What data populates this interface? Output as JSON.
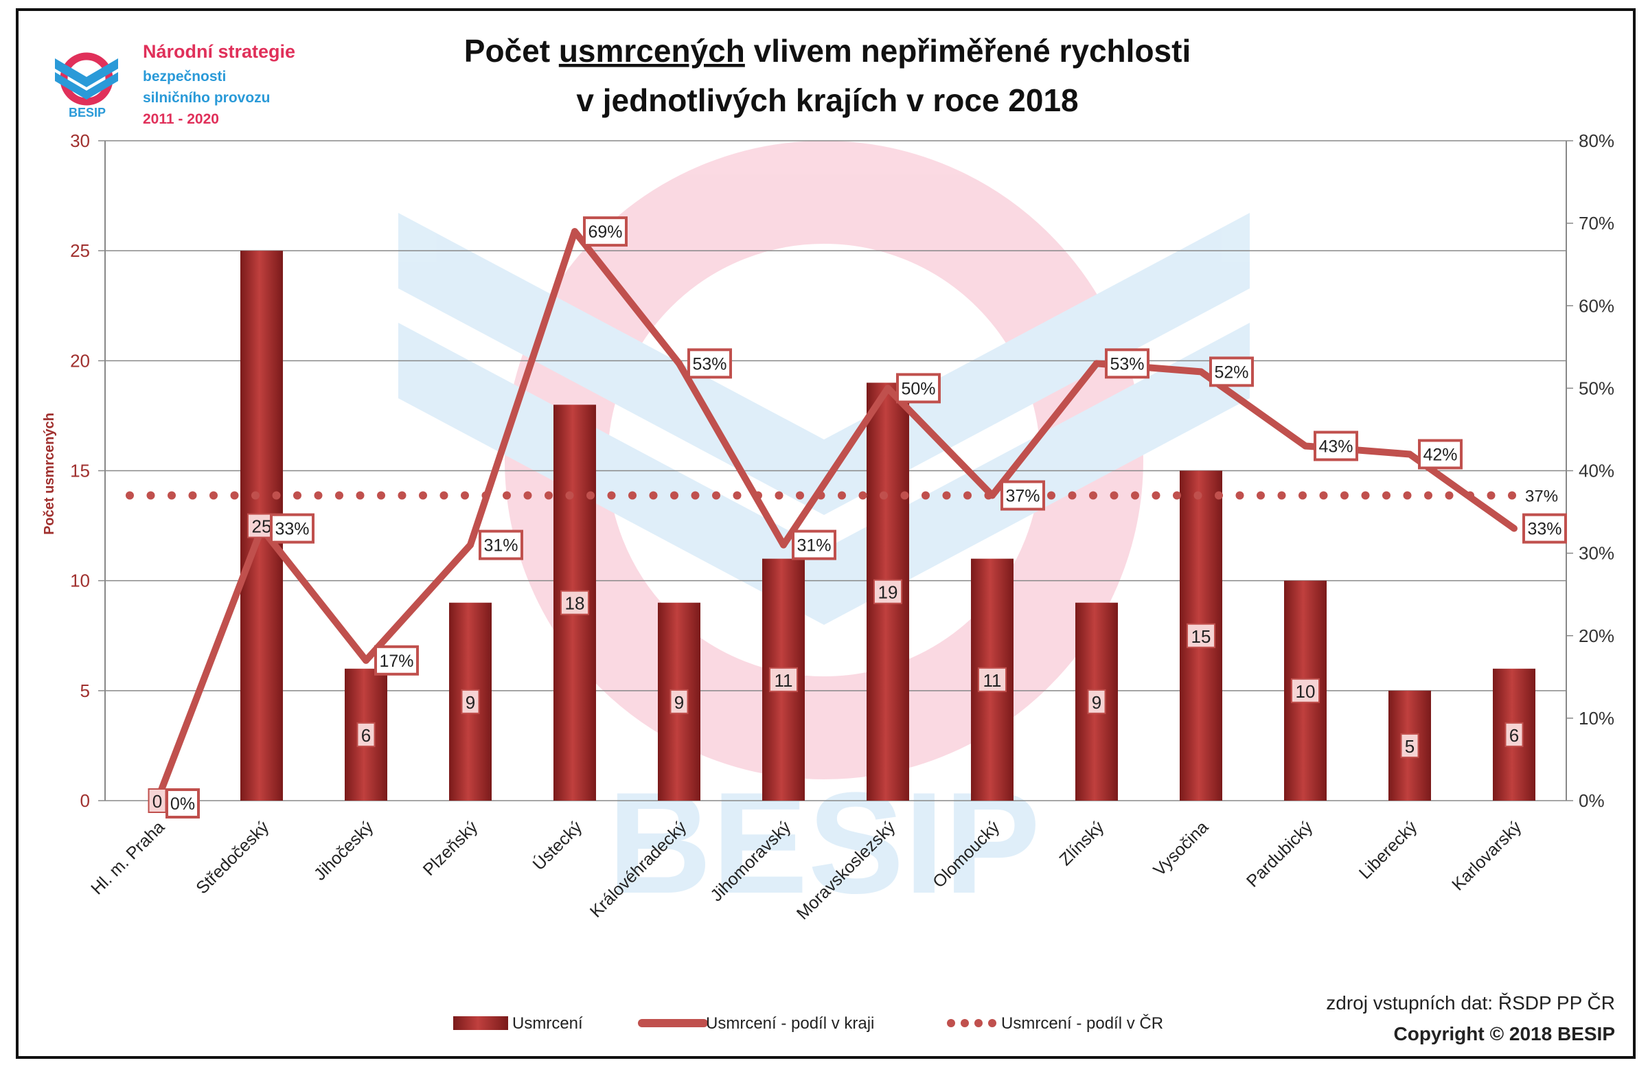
{
  "logo": {
    "brand": "BESIP",
    "line1": "Národní strategie",
    "line2": "bezpečnosti",
    "line3": "silničního provozu",
    "line4": "2011 - 2020"
  },
  "chart_data": {
    "type": "bar",
    "title_line1_prefix": "Počet ",
    "title_line1_underlined": "usmrcených",
    "title_line1_suffix": " vlivem nepřiměřené rychlosti",
    "title_line2": "v jednotlivých krajích v roce 2018",
    "ylabel": "Počet usmrcených",
    "ylim": [
      0,
      30
    ],
    "yticks": [
      "0",
      "5",
      "10",
      "15",
      "20",
      "25",
      "30"
    ],
    "y2lim": [
      0,
      80
    ],
    "y2ticks": [
      "0%",
      "10%",
      "20%",
      "30%",
      "40%",
      "50%",
      "60%",
      "70%",
      "80%"
    ],
    "grid": true,
    "legend_position": "bottom",
    "categories": [
      "Hl. m. Praha",
      "Středočeský",
      "Jihočeský",
      "Plzeňský",
      "Ústecký",
      "Královéhradecký",
      "Jihomoravský",
      "Moravskoslezský",
      "Olomoucký",
      "Zlínský",
      "Vysočina",
      "Pardubický",
      "Liberecký",
      "Karlovarský"
    ],
    "series": [
      {
        "name": "Usmrcení",
        "type": "bar",
        "axis": "left",
        "values": [
          0,
          25,
          6,
          9,
          18,
          9,
          11,
          19,
          11,
          9,
          15,
          10,
          5,
          6
        ],
        "labels": [
          "0",
          "25",
          "6",
          "9",
          "18",
          "9",
          "11",
          "19",
          "11",
          "9",
          "15",
          "10",
          "5",
          "6"
        ]
      },
      {
        "name": "Usmrcení - podíl v kraji",
        "type": "line",
        "axis": "right",
        "values": [
          0,
          33,
          17,
          31,
          69,
          53,
          31,
          50,
          37,
          53,
          52,
          43,
          42,
          33
        ],
        "labels": [
          "0%",
          "33%",
          "17%",
          "31%",
          "69%",
          "53%",
          "31%",
          "50%",
          "37%",
          "53%",
          "52%",
          "43%",
          "42%",
          "33%"
        ]
      },
      {
        "name": "Usmrcení - podíl v ČR",
        "type": "dotted-line",
        "axis": "right",
        "value": 37,
        "label": "37%"
      }
    ],
    "colors": {
      "bar": "#a52a2a",
      "line": "#c0504d",
      "dots": "#c0504d",
      "axis_text": "#a0302e"
    }
  },
  "footer": {
    "source": "zdroj vstupních dat: ŘSDP PP ČR",
    "copyright": "Copyright © 2018  BESIP"
  }
}
